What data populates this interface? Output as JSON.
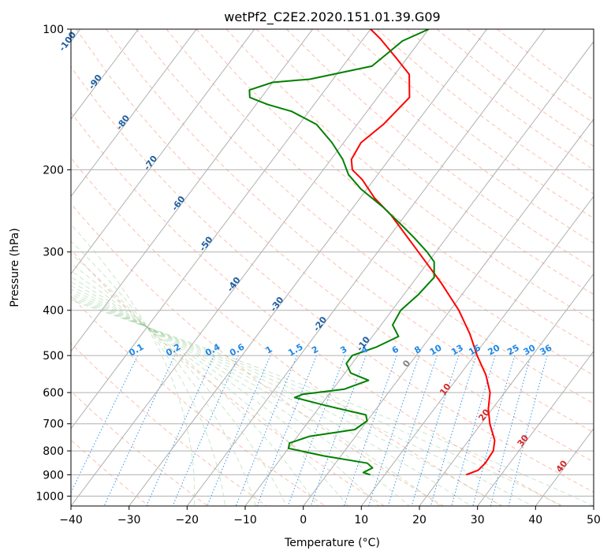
{
  "chart_data": {
    "type": "line",
    "title": "wetPf2_C2E2.2020.151.01.39.G09",
    "xlabel": "Temperature (°C)",
    "ylabel": "Pressure (hPa)",
    "xlim": [
      -40,
      50
    ],
    "ylim": [
      1050,
      100
    ],
    "y_scale": "log",
    "skew": true,
    "grid": true,
    "x_ticks": [
      "−40",
      "−30",
      "−20",
      "−10",
      "0",
      "10",
      "20",
      "30",
      "40",
      "50"
    ],
    "y_ticks": [
      "100",
      "200",
      "300",
      "400",
      "500",
      "600",
      "700",
      "800",
      "900",
      "1000"
    ],
    "series": [
      {
        "color": "#ff0000",
        "points": [
          {
            "p": 900,
            "t": 24
          },
          {
            "p": 880,
            "t": 25.5
          },
          {
            "p": 850,
            "t": 25.8
          },
          {
            "p": 800,
            "t": 25.6
          },
          {
            "p": 760,
            "t": 24.5
          },
          {
            "p": 700,
            "t": 21.5
          },
          {
            "p": 650,
            "t": 19.3
          },
          {
            "p": 600,
            "t": 17.5
          },
          {
            "p": 550,
            "t": 14.5
          },
          {
            "p": 500,
            "t": 10.5
          },
          {
            "p": 450,
            "t": 6.5
          },
          {
            "p": 400,
            "t": 1.5
          },
          {
            "p": 350,
            "t": -5
          },
          {
            "p": 300,
            "t": -13
          },
          {
            "p": 250,
            "t": -22.5
          },
          {
            "p": 230,
            "t": -27.5
          },
          {
            "p": 210,
            "t": -32
          },
          {
            "p": 200,
            "t": -35
          },
          {
            "p": 190,
            "t": -36.5
          },
          {
            "p": 175,
            "t": -37
          },
          {
            "p": 160,
            "t": -35.5
          },
          {
            "p": 140,
            "t": -34.5
          },
          {
            "p": 125,
            "t": -37.5
          },
          {
            "p": 115,
            "t": -42
          },
          {
            "p": 105,
            "t": -47
          },
          {
            "p": 100,
            "t": -50
          }
        ]
      },
      {
        "color": "#008000",
        "points": [
          {
            "p": 900,
            "t": 7.5
          },
          {
            "p": 890,
            "t": 6
          },
          {
            "p": 870,
            "t": 7
          },
          {
            "p": 850,
            "t": 5.5
          },
          {
            "p": 820,
            "t": -3
          },
          {
            "p": 790,
            "t": -10
          },
          {
            "p": 770,
            "t": -10.5
          },
          {
            "p": 745,
            "t": -8
          },
          {
            "p": 720,
            "t": -1
          },
          {
            "p": 690,
            "t": 0
          },
          {
            "p": 670,
            "t": -1
          },
          {
            "p": 640,
            "t": -9
          },
          {
            "p": 615,
            "t": -15.5
          },
          {
            "p": 605,
            "t": -14.5
          },
          {
            "p": 590,
            "t": -8
          },
          {
            "p": 565,
            "t": -5
          },
          {
            "p": 545,
            "t": -9
          },
          {
            "p": 520,
            "t": -11
          },
          {
            "p": 500,
            "t": -11
          },
          {
            "p": 480,
            "t": -8
          },
          {
            "p": 455,
            "t": -5.5
          },
          {
            "p": 430,
            "t": -8
          },
          {
            "p": 400,
            "t": -8.5
          },
          {
            "p": 370,
            "t": -7.5
          },
          {
            "p": 340,
            "t": -7
          },
          {
            "p": 315,
            "t": -9
          },
          {
            "p": 300,
            "t": -11.5
          },
          {
            "p": 280,
            "t": -15.5
          },
          {
            "p": 260,
            "t": -20
          },
          {
            "p": 240,
            "t": -25
          },
          {
            "p": 220,
            "t": -31
          },
          {
            "p": 205,
            "t": -35
          },
          {
            "p": 190,
            "t": -38
          },
          {
            "p": 175,
            "t": -42
          },
          {
            "p": 160,
            "t": -47
          },
          {
            "p": 150,
            "t": -53
          },
          {
            "p": 145,
            "t": -58
          },
          {
            "p": 140,
            "t": -62
          },
          {
            "p": 135,
            "t": -63
          },
          {
            "p": 130,
            "t": -60
          },
          {
            "p": 128,
            "t": -54
          },
          {
            "p": 120,
            "t": -45
          },
          {
            "p": 113,
            "t": -44
          },
          {
            "p": 106,
            "t": -43
          },
          {
            "p": 100,
            "t": -40
          }
        ]
      }
    ],
    "isotherm_labels": [
      {
        "t": -100,
        "text": "-100"
      },
      {
        "t": -90,
        "text": "-90"
      },
      {
        "t": -80,
        "text": "-80"
      },
      {
        "t": -70,
        "text": "-70"
      },
      {
        "t": -60,
        "text": "-60"
      },
      {
        "t": -50,
        "text": "-50"
      },
      {
        "t": -40,
        "text": "-40"
      },
      {
        "t": -30,
        "text": "-30"
      },
      {
        "t": -20,
        "text": "-20"
      },
      {
        "t": -10,
        "text": "-10"
      },
      {
        "t": 0,
        "text": "0"
      },
      {
        "t": 10,
        "text": "10"
      },
      {
        "t": 20,
        "text": "20"
      },
      {
        "t": 30,
        "text": "30"
      },
      {
        "t": 40,
        "text": "40"
      }
    ],
    "mixing_ratio_labels": [
      "0.1",
      "0.2",
      "0.4",
      "0.6",
      "1",
      "1.5",
      "2",
      "3",
      "4",
      "6",
      "8",
      "10",
      "13",
      "16",
      "20",
      "25",
      "30",
      "36"
    ],
    "colors": {
      "temperature": "#ff0000",
      "dewpoint": "#008000",
      "isotherm_label_cold": "#1f5fa0",
      "isotherm_label_zero": "#808080",
      "isotherm_label_warm": "#d62728",
      "mixing_ratio": "#1e88e5",
      "dry_adiabat": "#fa8a66",
      "moist_adiabat": "#8cc88c",
      "grid": "#b0b0b0"
    }
  }
}
